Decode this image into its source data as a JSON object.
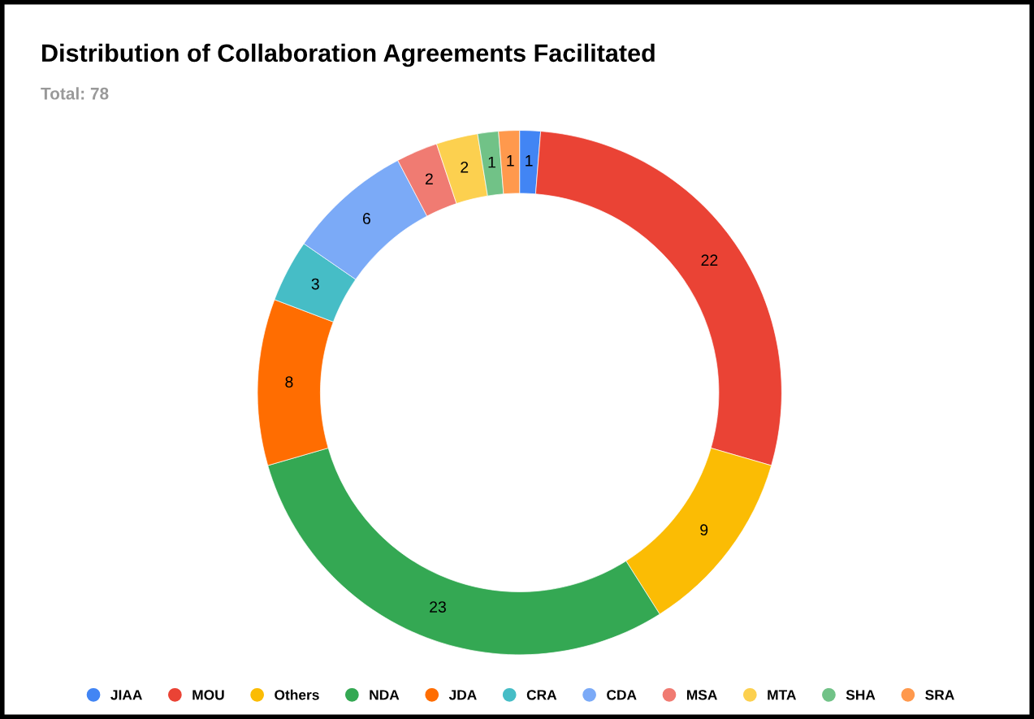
{
  "chart_data": {
    "type": "donut",
    "title": "Distribution of Collaboration Agreements Facilitated",
    "subtitle": "Total: 78",
    "categories": [
      "JIAA",
      "MOU",
      "Others",
      "NDA",
      "JDA",
      "CRA",
      "CDA",
      "MSA",
      "MTA",
      "SHA",
      "SRA"
    ],
    "values": [
      1,
      22,
      9,
      23,
      8,
      3,
      6,
      2,
      2,
      1,
      1
    ],
    "colors": [
      "#4285f4",
      "#ea4335",
      "#fbbc04",
      "#34a853",
      "#ff6d01",
      "#46bdc6",
      "#7baaf7",
      "#f07b72",
      "#fcd04f",
      "#71c287",
      "#ff994d"
    ],
    "data_labels": true,
    "legend": "bottom"
  }
}
